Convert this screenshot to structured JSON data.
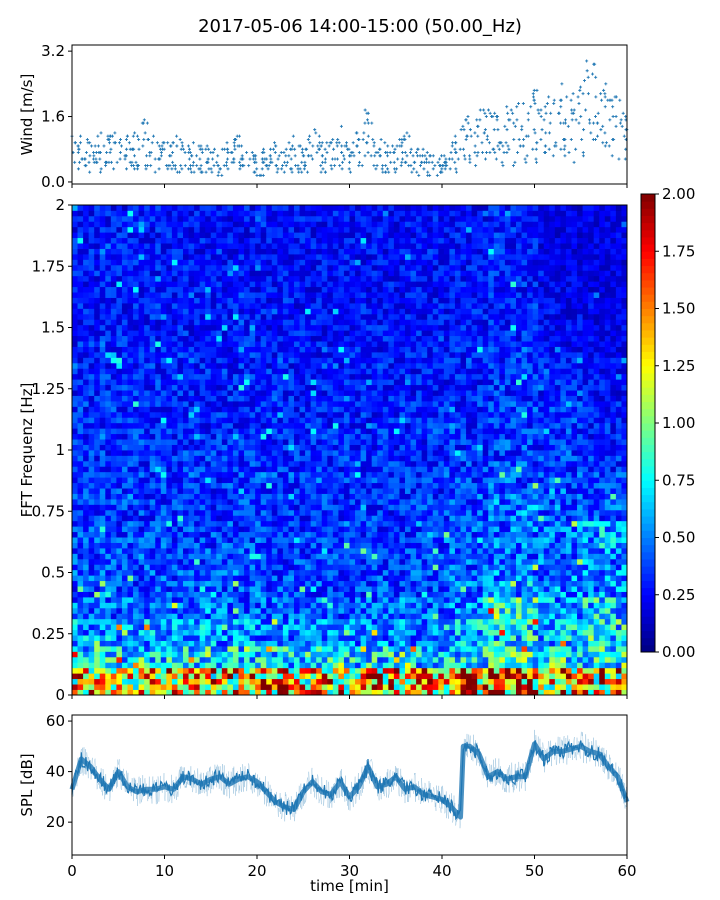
{
  "title": "2017-05-06 14:00-15:00 (50.00_Hz)",
  "chart_data": [
    {
      "type": "scatter",
      "ylabel": "Wind [m/s]",
      "ylim": [
        -0.05,
        3.35
      ],
      "xlim": [
        0,
        60
      ],
      "yticks": [
        "0.0",
        "1.6",
        "3.2"
      ],
      "ytick_values": [
        0,
        1.6,
        3.2
      ],
      "marker": "+",
      "color": "#1f77b4",
      "x": [
        0,
        1,
        2,
        3,
        4,
        5,
        6,
        7,
        8,
        9,
        10,
        11,
        12,
        13,
        14,
        15,
        16,
        17,
        18,
        19,
        20,
        21,
        22,
        23,
        24,
        25,
        26,
        27,
        28,
        29,
        30,
        31,
        32,
        33,
        34,
        35,
        36,
        37,
        38,
        39,
        40,
        41,
        42,
        43,
        44,
        45,
        46,
        47,
        48,
        49,
        50,
        51,
        52,
        53,
        54,
        55,
        56,
        57,
        58,
        59,
        60
      ],
      "y": [
        0.7,
        0.8,
        0.6,
        0.8,
        0.7,
        0.8,
        0.7,
        0.8,
        1.0,
        0.6,
        0.6,
        0.7,
        0.7,
        0.6,
        0.6,
        0.5,
        0.5,
        0.6,
        0.8,
        0.6,
        0.4,
        0.5,
        0.6,
        0.5,
        0.7,
        0.6,
        0.8,
        0.7,
        0.6,
        0.9,
        0.6,
        0.9,
        1.2,
        0.7,
        0.6,
        0.6,
        0.8,
        0.5,
        0.5,
        0.4,
        0.4,
        0.6,
        0.9,
        1.0,
        1.1,
        1.2,
        1.0,
        1.1,
        1.2,
        1.2,
        1.4,
        1.4,
        1.3,
        1.5,
        1.3,
        1.6,
        1.9,
        1.7,
        1.4,
        1.3,
        1.0
      ]
    },
    {
      "type": "heatmap",
      "ylabel": "FFT Frequenz [Hz]",
      "ylim": [
        0,
        2
      ],
      "xlim": [
        0,
        60
      ],
      "yticks": [
        "0",
        "0.25",
        "0.5",
        "0.75",
        "1",
        "1.25",
        "1.5",
        "1.75",
        "2"
      ],
      "ytick_values": [
        0,
        0.25,
        0.5,
        0.75,
        1,
        1.25,
        1.5,
        1.75,
        2
      ],
      "colormap": "jet",
      "clim": [
        0,
        2
      ],
      "colorbar_ticks": [
        "0.00",
        "0.25",
        "0.50",
        "0.75",
        "1.00",
        "1.25",
        "1.50",
        "1.75",
        "2.00"
      ],
      "colorbar_tick_values": [
        0,
        0.25,
        0.5,
        0.75,
        1,
        1.25,
        1.5,
        1.75,
        2
      ],
      "time_bins_min": [
        0,
        5,
        10,
        15,
        20,
        25,
        30,
        35,
        40,
        45,
        50,
        55
      ],
      "freq_bins_hz": [
        0,
        0.1,
        0.2,
        0.3,
        0.4,
        0.5,
        0.6,
        0.7,
        0.8,
        0.9,
        1.0,
        1.1,
        1.2,
        1.3,
        1.4,
        1.5,
        1.6,
        1.7,
        1.8,
        1.9
      ],
      "mean_level": [
        [
          1.3,
          0.7,
          0.55,
          0.45,
          0.4,
          0.42,
          0.38,
          0.36,
          0.35,
          0.34,
          0.33,
          0.32,
          0.31,
          0.3,
          0.3,
          0.29,
          0.28,
          0.28,
          0.28,
          0.28
        ],
        [
          1.3,
          0.7,
          0.55,
          0.45,
          0.4,
          0.4,
          0.38,
          0.36,
          0.35,
          0.34,
          0.33,
          0.32,
          0.31,
          0.3,
          0.3,
          0.29,
          0.28,
          0.28,
          0.28,
          0.28
        ],
        [
          1.3,
          0.7,
          0.55,
          0.45,
          0.4,
          0.38,
          0.37,
          0.35,
          0.34,
          0.33,
          0.3,
          0.3,
          0.3,
          0.3,
          0.29,
          0.28,
          0.27,
          0.27,
          0.27,
          0.27
        ],
        [
          1.3,
          0.75,
          0.55,
          0.45,
          0.4,
          0.38,
          0.37,
          0.35,
          0.34,
          0.33,
          0.32,
          0.31,
          0.3,
          0.3,
          0.29,
          0.28,
          0.27,
          0.27,
          0.27,
          0.27
        ],
        [
          1.4,
          0.7,
          0.5,
          0.42,
          0.38,
          0.36,
          0.35,
          0.34,
          0.33,
          0.32,
          0.31,
          0.3,
          0.29,
          0.28,
          0.28,
          0.27,
          0.26,
          0.26,
          0.26,
          0.26
        ],
        [
          1.3,
          0.7,
          0.5,
          0.42,
          0.38,
          0.36,
          0.35,
          0.34,
          0.33,
          0.32,
          0.31,
          0.3,
          0.29,
          0.28,
          0.28,
          0.27,
          0.26,
          0.26,
          0.26,
          0.26
        ],
        [
          1.4,
          0.7,
          0.5,
          0.42,
          0.38,
          0.36,
          0.35,
          0.34,
          0.33,
          0.32,
          0.31,
          0.3,
          0.29,
          0.28,
          0.28,
          0.27,
          0.26,
          0.26,
          0.26,
          0.26
        ],
        [
          1.3,
          0.65,
          0.5,
          0.42,
          0.38,
          0.36,
          0.35,
          0.34,
          0.33,
          0.32,
          0.31,
          0.3,
          0.29,
          0.28,
          0.28,
          0.27,
          0.26,
          0.26,
          0.26,
          0.26
        ],
        [
          1.5,
          0.7,
          0.6,
          0.5,
          0.45,
          0.42,
          0.4,
          0.38,
          0.36,
          0.34,
          0.33,
          0.32,
          0.3,
          0.3,
          0.29,
          0.28,
          0.27,
          0.27,
          0.27,
          0.27
        ],
        [
          1.6,
          0.8,
          0.7,
          0.8,
          0.5,
          0.45,
          0.45,
          0.5,
          0.4,
          0.38,
          0.36,
          0.35,
          0.34,
          0.33,
          0.3,
          0.3,
          0.3,
          0.3,
          0.3,
          0.3
        ],
        [
          1.4,
          0.8,
          0.65,
          0.55,
          0.5,
          0.45,
          0.45,
          0.4,
          0.38,
          0.36,
          0.35,
          0.34,
          0.3,
          0.28,
          0.25,
          0.24,
          0.22,
          0.2,
          0.2,
          0.2
        ],
        [
          1.3,
          0.8,
          0.75,
          0.7,
          0.5,
          0.5,
          0.6,
          0.4,
          0.36,
          0.32,
          0.3,
          0.28,
          0.26,
          0.24,
          0.22,
          0.2,
          0.2,
          0.2,
          0.2,
          0.2
        ]
      ]
    },
    {
      "type": "line",
      "ylabel": "SPL [dB]",
      "xlabel": "time [min]",
      "ylim": [
        7,
        62.4
      ],
      "xlim": [
        0,
        60
      ],
      "yticks": [
        "20",
        "40",
        "60"
      ],
      "ytick_values": [
        20,
        40,
        60
      ],
      "xticks": [
        "0",
        "10",
        "20",
        "30",
        "40",
        "50",
        "60"
      ],
      "xtick_values": [
        0,
        10,
        20,
        30,
        40,
        50,
        60
      ],
      "color": "#1f77b4",
      "x": [
        0,
        1,
        2,
        3,
        4,
        5,
        6,
        7,
        8,
        9,
        10,
        11,
        12,
        13,
        14,
        15,
        16,
        17,
        18,
        19,
        20,
        21,
        22,
        23,
        24,
        25,
        26,
        27,
        28,
        29,
        30,
        31,
        32,
        33,
        34,
        35,
        36,
        37,
        38,
        39,
        40,
        41,
        42,
        42.3,
        43,
        44,
        45,
        46,
        47,
        48,
        49,
        50,
        51,
        52,
        53,
        54,
        55,
        56,
        57,
        58,
        59,
        60
      ],
      "y": [
        33,
        45,
        42,
        37,
        33,
        40,
        34,
        32,
        33,
        33,
        34,
        33,
        38,
        37,
        35,
        37,
        38,
        35,
        37,
        38,
        36,
        32,
        28,
        26,
        25,
        32,
        36,
        32,
        31,
        36,
        30,
        34,
        42,
        34,
        35,
        38,
        33,
        34,
        31,
        30,
        29,
        26,
        22,
        50,
        50,
        47,
        38,
        40,
        37,
        38,
        38,
        51,
        45,
        48,
        48,
        49,
        50,
        48,
        47,
        42,
        38,
        28
      ]
    }
  ]
}
